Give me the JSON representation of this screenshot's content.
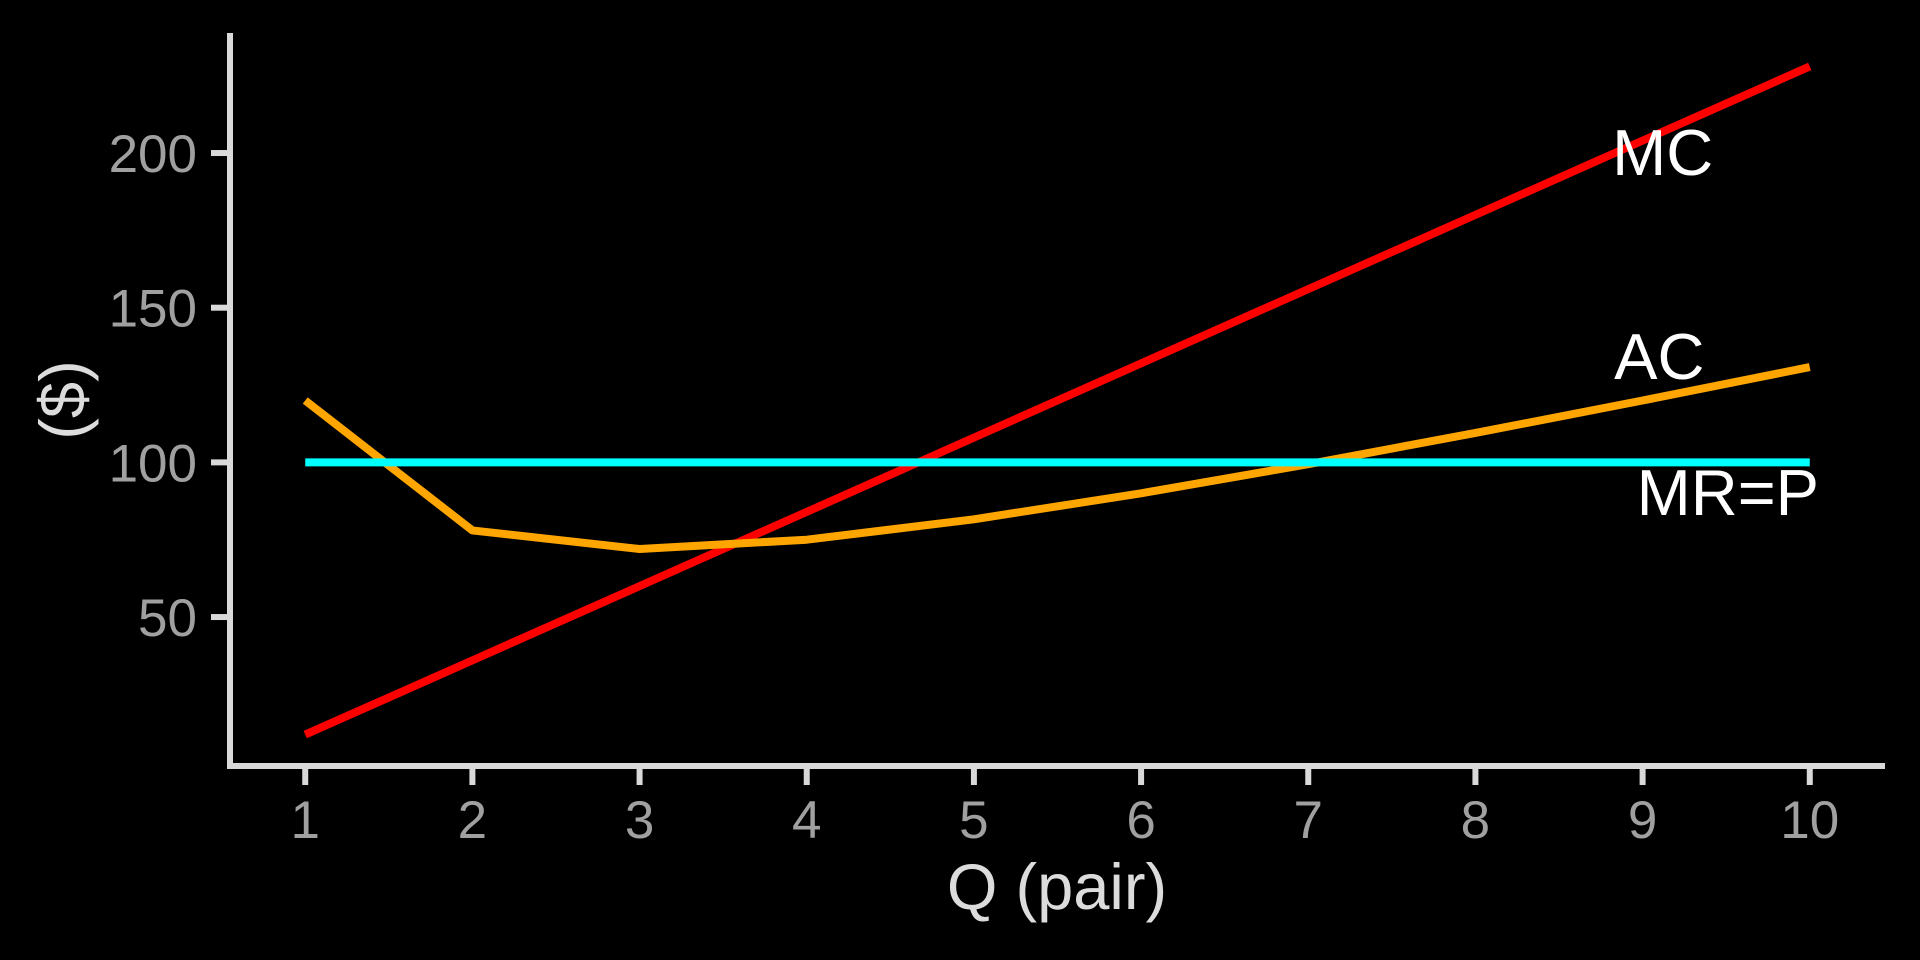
{
  "chart_data": {
    "type": "line",
    "title": "",
    "xlabel": "Q (pair)",
    "ylabel": "($)",
    "x": [
      1,
      2,
      3,
      4,
      5,
      6,
      7,
      8,
      9,
      10
    ],
    "series": [
      {
        "name": "MC",
        "color": "#FF0000",
        "values": [
          12,
          36,
          60,
          84,
          108,
          132,
          156,
          180,
          204,
          228
        ]
      },
      {
        "name": "AC",
        "color": "#FFA500",
        "values": [
          120,
          78,
          72,
          75,
          81.6,
          90,
          99.43,
          109.5,
          120,
          130.8
        ]
      },
      {
        "name": "MR=P",
        "color": "#00FFFF",
        "values": [
          100,
          100,
          100,
          100,
          100,
          100,
          100,
          100,
          100,
          100
        ]
      }
    ],
    "annotations": [
      {
        "text": "MC",
        "x": 9.12,
        "y": 200.3,
        "color": "#FFFFFF"
      },
      {
        "text": "AC",
        "x": 9.1,
        "y": 134.4,
        "color": "#FFFFFF"
      },
      {
        "text": "MR=P",
        "x": 9.51,
        "y": 90.4,
        "color": "#FFFFFF"
      }
    ],
    "x_ticks": [
      1,
      2,
      3,
      4,
      5,
      6,
      7,
      8,
      9,
      10
    ],
    "y_ticks": [
      50,
      100,
      150,
      200
    ],
    "xlim": [
      0.55,
      10.45
    ],
    "ylim": [
      1.2,
      238.8
    ],
    "grid": false,
    "legend": "none",
    "background_color": "#000000",
    "axis_color": "#D9D9D9",
    "tick_label_color": "#A0A0A0",
    "axis_title_color": "#DCDCDC",
    "line_width": 8
  }
}
